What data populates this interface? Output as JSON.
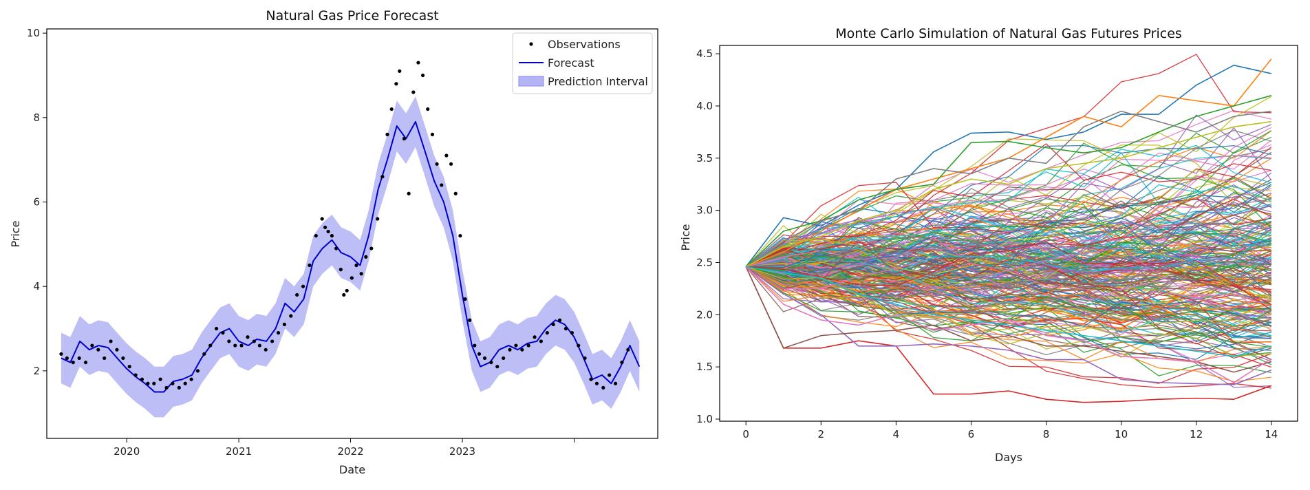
{
  "chart_data": [
    {
      "type": "line",
      "title": "Natural Gas Price Forecast",
      "xlabel": "Date",
      "ylabel": "Price",
      "xlim": [
        "2019-04-15",
        "2024-09-30"
      ],
      "ylim": [
        0.4,
        10.1
      ],
      "x_ticks": [
        {
          "date": "2020-01-01",
          "label": "2020"
        },
        {
          "date": "2021-01-01",
          "label": "2021"
        },
        {
          "date": "2022-01-01",
          "label": "2022"
        },
        {
          "date": "2023-01-01",
          "label": "2023"
        },
        {
          "date": "2024-01-01",
          "label": ""
        }
      ],
      "y_ticks": [
        2,
        4,
        6,
        8,
        10
      ],
      "grid": false,
      "legend": {
        "position": "top-right",
        "entries": [
          "Observations",
          "Forecast",
          "Prediction Interval"
        ]
      },
      "colors": {
        "observations": "#000000",
        "forecast": "#0000cc",
        "interval": "#b3b3f5"
      },
      "interval_halfwidth": 0.6,
      "series": [
        {
          "name": "Forecast",
          "x": [
            "2019-06-01",
            "2019-07-01",
            "2019-08-01",
            "2019-09-01",
            "2019-10-01",
            "2019-11-01",
            "2019-12-01",
            "2020-01-01",
            "2020-02-01",
            "2020-03-01",
            "2020-04-01",
            "2020-05-01",
            "2020-06-01",
            "2020-07-01",
            "2020-08-01",
            "2020-09-01",
            "2020-10-01",
            "2020-11-01",
            "2020-12-01",
            "2021-01-01",
            "2021-02-01",
            "2021-03-01",
            "2021-04-01",
            "2021-05-01",
            "2021-06-01",
            "2021-07-01",
            "2021-08-01",
            "2021-09-01",
            "2021-10-01",
            "2021-11-01",
            "2021-12-01",
            "2022-01-01",
            "2022-02-01",
            "2022-03-01",
            "2022-04-01",
            "2022-05-01",
            "2022-06-01",
            "2022-07-01",
            "2022-08-01",
            "2022-09-01",
            "2022-10-01",
            "2022-11-01",
            "2022-12-01",
            "2023-01-01",
            "2023-02-01",
            "2023-03-01",
            "2023-04-01",
            "2023-05-01",
            "2023-06-01",
            "2023-07-01",
            "2023-08-01",
            "2023-09-01",
            "2023-10-01",
            "2023-11-01",
            "2023-12-01",
            "2024-01-01",
            "2024-02-01",
            "2024-03-01",
            "2024-04-01",
            "2024-05-01",
            "2024-06-01",
            "2024-07-01",
            "2024-08-01"
          ],
          "y": [
            2.3,
            2.2,
            2.7,
            2.5,
            2.6,
            2.55,
            2.3,
            2.05,
            1.85,
            1.7,
            1.5,
            1.5,
            1.75,
            1.8,
            1.9,
            2.3,
            2.6,
            2.9,
            3.0,
            2.7,
            2.6,
            2.75,
            2.7,
            3.0,
            3.6,
            3.4,
            3.7,
            4.6,
            4.9,
            5.1,
            4.8,
            4.7,
            4.5,
            5.2,
            6.3,
            7.0,
            7.8,
            7.5,
            7.9,
            7.2,
            6.5,
            6.0,
            5.2,
            3.8,
            2.6,
            2.1,
            2.2,
            2.5,
            2.6,
            2.5,
            2.65,
            2.7,
            3.0,
            3.2,
            3.1,
            2.8,
            2.3,
            1.8,
            1.9,
            1.7,
            2.1,
            2.6,
            2.1
          ]
        },
        {
          "name": "Observations",
          "x": [
            "2019-06-01",
            "2019-06-20",
            "2019-07-10",
            "2019-07-30",
            "2019-08-20",
            "2019-09-10",
            "2019-09-30",
            "2019-10-20",
            "2019-11-10",
            "2019-11-30",
            "2019-12-20",
            "2020-01-10",
            "2020-01-30",
            "2020-02-20",
            "2020-03-10",
            "2020-03-30",
            "2020-04-20",
            "2020-05-10",
            "2020-05-30",
            "2020-06-20",
            "2020-07-10",
            "2020-07-30",
            "2020-08-20",
            "2020-09-10",
            "2020-09-30",
            "2020-10-20",
            "2020-11-10",
            "2020-11-30",
            "2020-12-20",
            "2021-01-10",
            "2021-01-30",
            "2021-02-20",
            "2021-03-10",
            "2021-03-30",
            "2021-04-20",
            "2021-05-10",
            "2021-05-30",
            "2021-06-20",
            "2021-07-10",
            "2021-07-30",
            "2021-08-20",
            "2021-09-10",
            "2021-09-30",
            "2021-10-10",
            "2021-10-20",
            "2021-11-01",
            "2021-11-15",
            "2021-11-30",
            "2021-12-10",
            "2021-12-20",
            "2022-01-05",
            "2022-01-20",
            "2022-02-05",
            "2022-02-20",
            "2022-03-10",
            "2022-03-30",
            "2022-04-15",
            "2022-05-01",
            "2022-05-15",
            "2022-05-30",
            "2022-06-10",
            "2022-06-25",
            "2022-07-10",
            "2022-07-25",
            "2022-08-10",
            "2022-08-25",
            "2022-09-10",
            "2022-09-25",
            "2022-10-10",
            "2022-10-25",
            "2022-11-10",
            "2022-11-25",
            "2022-12-10",
            "2022-12-25",
            "2023-01-10",
            "2023-01-25",
            "2023-02-10",
            "2023-02-25",
            "2023-03-15",
            "2023-04-05",
            "2023-04-25",
            "2023-05-15",
            "2023-06-05",
            "2023-06-25",
            "2023-07-15",
            "2023-08-05",
            "2023-08-25",
            "2023-09-15",
            "2023-10-05",
            "2023-10-25",
            "2023-11-15",
            "2023-12-05",
            "2023-12-25",
            "2024-01-15",
            "2024-02-05",
            "2024-02-25",
            "2024-03-15",
            "2024-04-05",
            "2024-04-25",
            "2024-05-15",
            "2024-06-05",
            "2024-06-25"
          ],
          "y": [
            2.4,
            2.3,
            2.2,
            2.3,
            2.2,
            2.6,
            2.5,
            2.3,
            2.7,
            2.5,
            2.3,
            2.1,
            1.9,
            1.8,
            1.7,
            1.7,
            1.8,
            1.6,
            1.7,
            1.6,
            1.7,
            1.8,
            2.0,
            2.4,
            2.6,
            3.0,
            2.9,
            2.7,
            2.6,
            2.6,
            2.8,
            2.7,
            2.6,
            2.5,
            2.7,
            2.9,
            3.1,
            3.3,
            3.8,
            4.0,
            4.5,
            5.2,
            5.6,
            5.4,
            5.3,
            5.2,
            4.9,
            4.4,
            3.8,
            3.9,
            4.2,
            4.5,
            4.3,
            4.7,
            4.9,
            5.6,
            6.6,
            7.6,
            8.2,
            8.8,
            9.1,
            7.5,
            6.2,
            8.6,
            9.3,
            9.0,
            8.2,
            7.6,
            6.9,
            6.4,
            7.1,
            6.9,
            6.2,
            5.2,
            3.7,
            3.2,
            2.6,
            2.4,
            2.3,
            2.2,
            2.1,
            2.3,
            2.5,
            2.6,
            2.5,
            2.6,
            2.8,
            2.7,
            2.9,
            3.1,
            3.2,
            3.0,
            2.9,
            2.6,
            2.3,
            1.8,
            1.7,
            1.6,
            1.9,
            1.7,
            2.2,
            2.5
          ]
        }
      ]
    },
    {
      "type": "line",
      "title": "Monte Carlo Simulation of Natural Gas Futures Prices",
      "xlabel": "Days",
      "ylabel": "Price",
      "xlim": [
        -0.7,
        14.7
      ],
      "ylim": [
        0.98,
        4.58
      ],
      "x_ticks": [
        0,
        2,
        4,
        6,
        8,
        10,
        12,
        14
      ],
      "y_ticks": [
        1.0,
        1.5,
        2.0,
        2.5,
        3.0,
        3.5,
        4.0,
        4.5
      ],
      "grid": false,
      "legend": null,
      "days": [
        0,
        1,
        2,
        3,
        4,
        5,
        6,
        7,
        8,
        9,
        10,
        11,
        12,
        13,
        14
      ],
      "start_price": 2.46,
      "palette": [
        "#1f77b4",
        "#ff7f0e",
        "#2ca02c",
        "#d62728",
        "#9467bd",
        "#8c564b",
        "#e377c2",
        "#7f7f7f",
        "#bcbd22",
        "#17becf"
      ],
      "series": [
        {
          "values": [
            2.46,
            2.93,
            2.85,
            3.05,
            3.2,
            3.56,
            3.74,
            3.75,
            3.68,
            3.75,
            3.92,
            3.92,
            4.2,
            4.39,
            4.31
          ]
        },
        {
          "values": [
            2.46,
            2.6,
            2.8,
            3.0,
            3.2,
            3.3,
            3.4,
            3.5,
            3.7,
            3.9,
            3.8,
            4.1,
            4.05,
            4.0,
            4.45
          ]
        },
        {
          "values": [
            2.46,
            2.8,
            2.9,
            3.1,
            3.2,
            3.25,
            3.65,
            3.66,
            3.6,
            3.55,
            3.6,
            3.75,
            3.9,
            4.0,
            4.1
          ]
        },
        {
          "values": [
            2.46,
            1.68,
            1.68,
            1.75,
            1.7,
            1.24,
            1.24,
            1.27,
            1.19,
            1.16,
            1.17,
            1.19,
            1.2,
            1.19,
            1.32
          ]
        },
        {
          "values": [
            2.46,
            2.2,
            2.0,
            1.7,
            1.7,
            1.72,
            1.7,
            1.66,
            1.57,
            1.57,
            1.38,
            1.35,
            1.34,
            1.33,
            1.47
          ]
        },
        {
          "values": [
            2.46,
            1.68,
            1.8,
            1.83,
            1.85,
            1.9,
            1.75,
            1.8,
            1.7,
            1.7,
            1.65,
            1.6,
            1.55,
            1.45,
            1.55
          ]
        },
        {
          "values": [
            2.46,
            2.1,
            1.95,
            1.9,
            2.0,
            1.85,
            1.9,
            1.95,
            1.8,
            1.75,
            1.6,
            1.58,
            1.55,
            1.35,
            1.58
          ]
        },
        {
          "values": [
            2.46,
            2.7,
            2.9,
            3.0,
            3.3,
            3.4,
            3.35,
            3.5,
            3.45,
            3.8,
            3.95,
            3.85,
            3.75,
            3.9,
            3.95
          ]
        },
        {
          "values": [
            2.46,
            2.65,
            2.75,
            2.9,
            3.0,
            3.2,
            3.3,
            3.25,
            3.4,
            3.45,
            3.5,
            3.6,
            3.7,
            3.8,
            3.85
          ]
        },
        {
          "values": [
            2.46,
            2.4,
            2.35,
            2.2,
            2.1,
            2.0,
            1.95,
            1.9,
            1.85,
            1.8,
            1.75,
            1.7,
            1.65,
            1.6,
            1.7
          ]
        }
      ]
    }
  ]
}
